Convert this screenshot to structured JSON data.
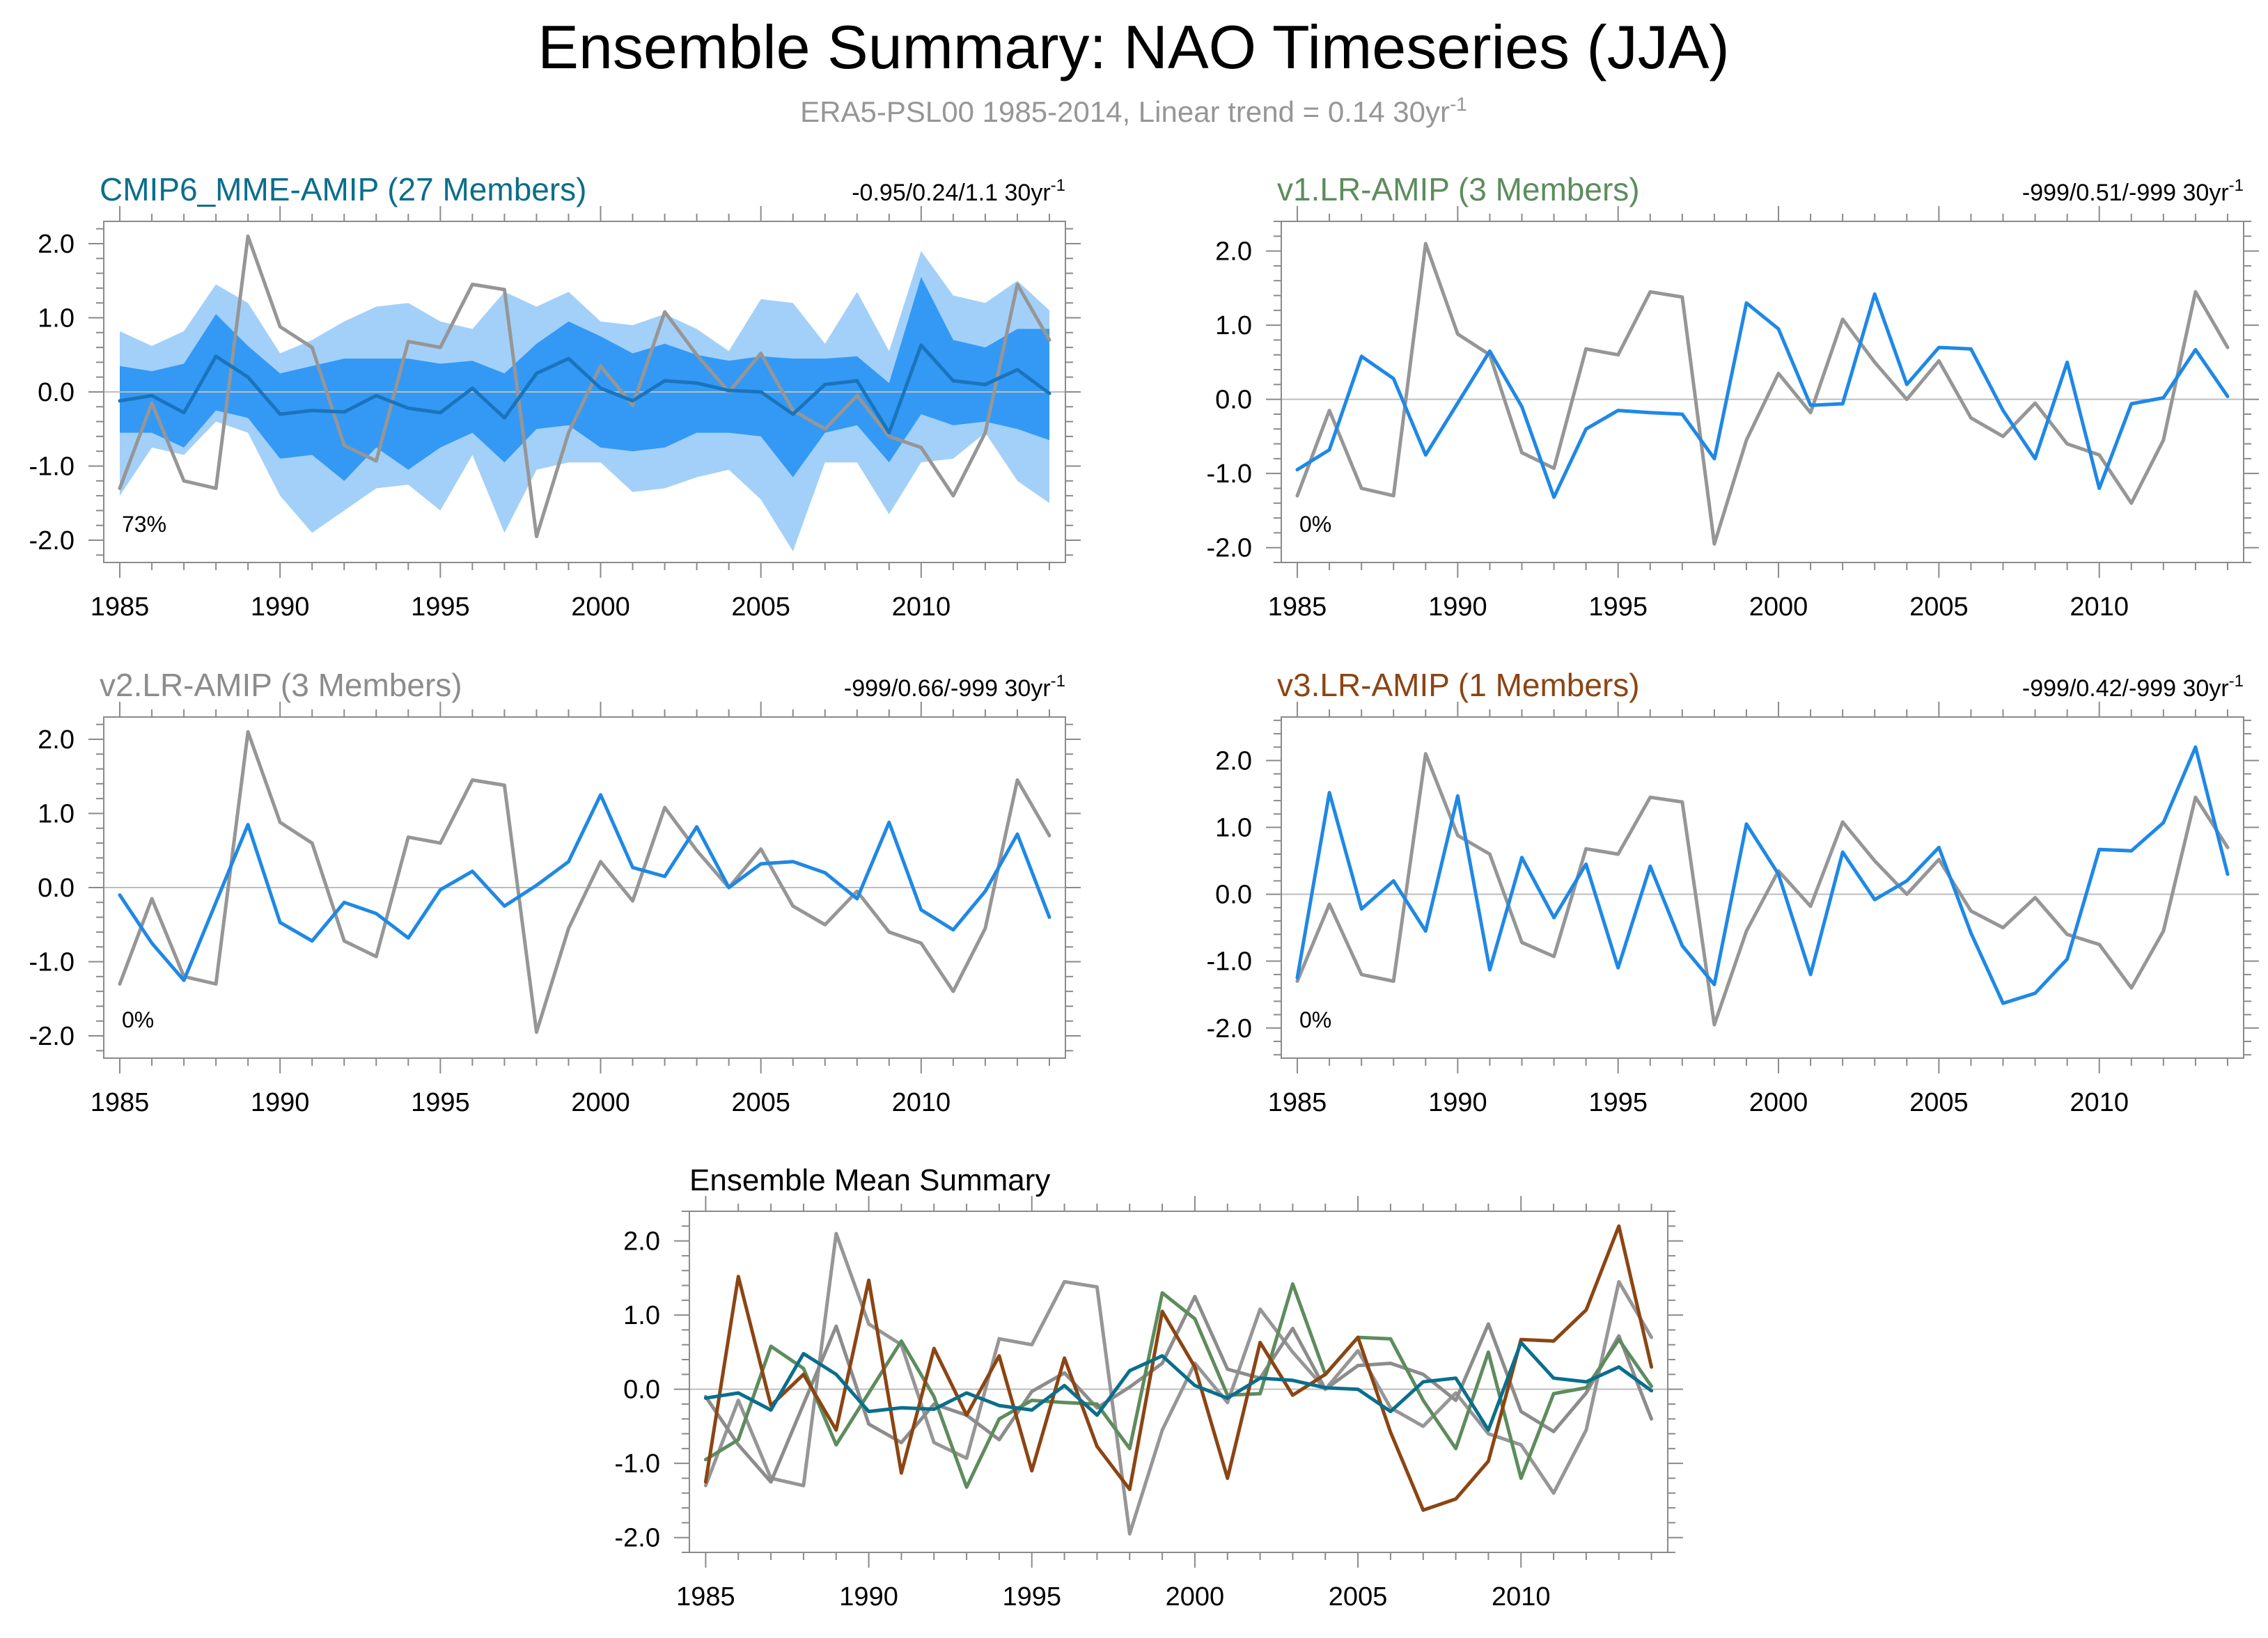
{
  "figure": {
    "title": "Ensemble Summary: NAO Timeseries (JJA)",
    "subtitle": "ERA5-PSL00 1985-2014, Linear trend = 0.14 30yr",
    "subtitle_sup": "-1"
  },
  "colors": {
    "obs": "#969696",
    "model_blue": "#1f88e5",
    "mme_title": "#0a6e8c",
    "mme_mean": "#1a74bd",
    "band_outer": "#a3d0f8",
    "band_inner": "#3399f5",
    "v1": "#5d8c5d",
    "v2": "#8c8c8c",
    "v3": "#8b4513",
    "zero_line": "#bdbdbd"
  },
  "chart_data": [
    {
      "id": "cmip6",
      "type": "line",
      "title": "CMIP6_MME-AMIP (27 Members)",
      "stats": "-0.95/0.24/1.1 30yr",
      "stats_sup": "-1",
      "percent_label": "73%",
      "x": [
        1985,
        1986,
        1987,
        1988,
        1989,
        1990,
        1991,
        1992,
        1993,
        1994,
        1995,
        1996,
        1997,
        1998,
        1999,
        2000,
        2001,
        2002,
        2003,
        2004,
        2005,
        2006,
        2007,
        2008,
        2009,
        2010,
        2011,
        2012,
        2013,
        2014
      ],
      "xlim": [
        1984.5,
        2014.5
      ],
      "ylim": [
        -2.3,
        2.3
      ],
      "xticks": [
        1985,
        1990,
        1995,
        2000,
        2005,
        2010
      ],
      "yticks": [
        2.0,
        1.0,
        0.0,
        -1.0,
        -2.0
      ],
      "ytick_labels": [
        "2.0",
        "1.0",
        "0.0",
        "-1.0",
        "-2.0"
      ],
      "xtick_labels": [
        "1985",
        "1990",
        "1995",
        "2000",
        "2005",
        "2010"
      ],
      "band_outer": {
        "upper": [
          0.82,
          0.62,
          0.82,
          1.45,
          1.2,
          0.52,
          0.7,
          0.95,
          1.15,
          1.2,
          0.95,
          0.85,
          1.35,
          1.15,
          1.35,
          0.95,
          0.9,
          1.05,
          0.85,
          0.55,
          1.25,
          1.2,
          0.65,
          1.35,
          0.55,
          1.9,
          1.3,
          1.2,
          1.5,
          1.1
        ],
        "lower": [
          -1.4,
          -0.75,
          -0.85,
          -0.4,
          -0.55,
          -1.4,
          -1.9,
          -1.6,
          -1.3,
          -1.25,
          -1.6,
          -0.85,
          -1.9,
          -1.05,
          -0.95,
          -0.95,
          -1.35,
          -1.3,
          -1.15,
          -1.05,
          -1.45,
          -2.15,
          -0.95,
          -0.95,
          -1.65,
          -0.95,
          -0.9,
          -0.55,
          -1.2,
          -1.5
        ]
      },
      "band_inner": {
        "upper": [
          0.35,
          0.28,
          0.38,
          1.05,
          0.62,
          0.25,
          0.35,
          0.45,
          0.45,
          0.45,
          0.38,
          0.42,
          0.25,
          0.65,
          0.95,
          0.75,
          0.52,
          0.65,
          0.5,
          0.42,
          0.48,
          0.45,
          0.45,
          0.48,
          0.12,
          1.55,
          0.7,
          0.6,
          0.85,
          0.85
        ],
        "lower": [
          -0.55,
          -0.55,
          -0.75,
          -0.25,
          -0.35,
          -0.9,
          -0.85,
          -1.2,
          -0.75,
          -1.05,
          -0.75,
          -0.55,
          -0.95,
          -0.5,
          -0.45,
          -0.75,
          -0.8,
          -0.75,
          -0.55,
          -0.55,
          -0.6,
          -1.15,
          -0.55,
          -0.45,
          -0.95,
          -0.3,
          -0.45,
          -0.4,
          -0.5,
          -0.65
        ]
      },
      "series": [
        {
          "role": "obs",
          "values": [
            -1.3,
            -0.15,
            -1.2,
            -1.3,
            2.1,
            0.88,
            0.6,
            -0.72,
            -0.93,
            0.68,
            0.6,
            1.45,
            1.38,
            -1.95,
            -0.55,
            0.35,
            -0.18,
            1.08,
            0.5,
            0.0,
            0.52,
            -0.25,
            -0.5,
            -0.05,
            -0.6,
            -0.75,
            -1.4,
            -0.55,
            1.45,
            0.7
          ]
        },
        {
          "role": "model",
          "values": [
            -0.12,
            -0.05,
            -0.28,
            0.48,
            0.2,
            -0.3,
            -0.25,
            -0.27,
            -0.05,
            -0.22,
            -0.28,
            0.05,
            -0.35,
            0.25,
            0.45,
            0.05,
            -0.12,
            0.15,
            0.12,
            0.02,
            0.0,
            -0.3,
            0.1,
            0.15,
            -0.55,
            0.63,
            0.15,
            0.1,
            0.3,
            -0.02
          ]
        }
      ]
    },
    {
      "id": "v1",
      "type": "line",
      "title": "v1.LR-AMIP (3 Members)",
      "stats": "-999/0.51/-999 30yr",
      "stats_sup": "-1",
      "percent_label": "0%",
      "x": [
        1985,
        1986,
        1987,
        1988,
        1989,
        1990,
        1991,
        1992,
        1993,
        1994,
        1995,
        1996,
        1997,
        1998,
        1999,
        2000,
        2001,
        2002,
        2003,
        2004,
        2005,
        2006,
        2007,
        2008,
        2009,
        2010,
        2011,
        2012,
        2013,
        2014
      ],
      "xlim": [
        1984.5,
        2014.5
      ],
      "ylim": [
        -2.2,
        2.4
      ],
      "xticks": [
        1985,
        1990,
        1995,
        2000,
        2005,
        2010
      ],
      "yticks": [
        2.0,
        1.0,
        0.0,
        -1.0,
        -2.0
      ],
      "ytick_labels": [
        "2.0",
        "1.0",
        "0.0",
        "-1.0",
        "-2.0"
      ],
      "xtick_labels": [
        "1985",
        "1990",
        "1995",
        "2000",
        "2005",
        "2010"
      ],
      "series": [
        {
          "role": "obs",
          "values": [
            -1.3,
            -0.15,
            -1.2,
            -1.3,
            2.1,
            0.88,
            0.6,
            -0.72,
            -0.93,
            0.68,
            0.6,
            1.45,
            1.38,
            -1.95,
            -0.55,
            0.35,
            -0.18,
            1.08,
            0.5,
            0.0,
            0.52,
            -0.25,
            -0.5,
            -0.05,
            -0.6,
            -0.75,
            -1.4,
            -0.55,
            1.45,
            0.7
          ]
        },
        {
          "role": "model",
          "values": [
            -0.95,
            -0.68,
            0.58,
            0.28,
            -0.75,
            -0.05,
            0.65,
            -0.1,
            -1.32,
            -0.4,
            -0.15,
            -0.18,
            -0.2,
            -0.8,
            1.3,
            0.95,
            -0.08,
            -0.06,
            1.42,
            0.2,
            0.7,
            0.68,
            -0.15,
            -0.8,
            0.5,
            -1.2,
            -0.06,
            0.02,
            0.67,
            0.04
          ]
        }
      ]
    },
    {
      "id": "v2",
      "type": "line",
      "title": "v2.LR-AMIP (3 Members)",
      "stats": "-999/0.66/-999 30yr",
      "stats_sup": "-1",
      "percent_label": "0%",
      "x": [
        1985,
        1986,
        1987,
        1988,
        1989,
        1990,
        1991,
        1992,
        1993,
        1994,
        1995,
        1996,
        1997,
        1998,
        1999,
        2000,
        2001,
        2002,
        2003,
        2004,
        2005,
        2006,
        2007,
        2008,
        2009,
        2010,
        2011,
        2012,
        2013,
        2014
      ],
      "xlim": [
        1984.5,
        2014.5
      ],
      "ylim": [
        -2.3,
        2.3
      ],
      "xticks": [
        1985,
        1990,
        1995,
        2000,
        2005,
        2010
      ],
      "yticks": [
        2.0,
        1.0,
        0.0,
        -1.0,
        -2.0
      ],
      "ytick_labels": [
        "2.0",
        "1.0",
        "0.0",
        "-1.0",
        "-2.0"
      ],
      "xtick_labels": [
        "1985",
        "1990",
        "1995",
        "2000",
        "2005",
        "2010"
      ],
      "series": [
        {
          "role": "obs",
          "values": [
            -1.3,
            -0.15,
            -1.2,
            -1.3,
            2.1,
            0.88,
            0.6,
            -0.72,
            -0.93,
            0.68,
            0.6,
            1.45,
            1.38,
            -1.95,
            -0.55,
            0.35,
            -0.18,
            1.08,
            0.5,
            0.0,
            0.52,
            -0.25,
            -0.5,
            -0.05,
            -0.6,
            -0.75,
            -1.4,
            -0.55,
            1.45,
            0.7
          ]
        },
        {
          "role": "model",
          "values": [
            -0.1,
            -0.75,
            -1.25,
            -0.2,
            0.85,
            -0.47,
            -0.72,
            -0.2,
            -0.35,
            -0.68,
            -0.03,
            0.22,
            -0.25,
            0.03,
            0.35,
            1.25,
            0.27,
            0.15,
            0.82,
            0.0,
            0.32,
            0.35,
            0.2,
            -0.15,
            0.88,
            -0.3,
            -0.57,
            -0.05,
            0.72,
            -0.4
          ]
        }
      ]
    },
    {
      "id": "v3",
      "type": "line",
      "title": "v3.LR-AMIP (1 Members)",
      "stats": "-999/0.42/-999 30yr",
      "stats_sup": "-1",
      "percent_label": "0%",
      "x": [
        1985,
        1986,
        1987,
        1988,
        1989,
        1990,
        1991,
        1992,
        1993,
        1994,
        1995,
        1996,
        1997,
        1998,
        1999,
        2000,
        2001,
        2002,
        2003,
        2004,
        2005,
        2006,
        2007,
        2008,
        2009,
        2010,
        2011,
        2012,
        2013,
        2014
      ],
      "xlim": [
        1984.5,
        2014.5
      ],
      "ylim": [
        -2.45,
        2.65
      ],
      "xticks": [
        1985,
        1990,
        1995,
        2000,
        2005,
        2010
      ],
      "yticks": [
        2.0,
        1.0,
        0.0,
        -1.0,
        -2.0
      ],
      "ytick_labels": [
        "2.0",
        "1.0",
        "0.0",
        "-1.0",
        "-2.0"
      ],
      "xtick_labels": [
        "1985",
        "1990",
        "1995",
        "2000",
        "2005",
        "2010"
      ],
      "series": [
        {
          "role": "obs",
          "values": [
            -1.3,
            -0.15,
            -1.2,
            -1.3,
            2.1,
            0.88,
            0.6,
            -0.72,
            -0.93,
            0.68,
            0.6,
            1.45,
            1.38,
            -1.95,
            -0.55,
            0.35,
            -0.18,
            1.08,
            0.5,
            0.0,
            0.52,
            -0.25,
            -0.5,
            -0.05,
            -0.6,
            -0.75,
            -1.4,
            -0.55,
            1.45,
            0.7
          ]
        },
        {
          "role": "model",
          "values": [
            -1.25,
            1.52,
            -0.22,
            0.2,
            -0.55,
            1.47,
            -1.13,
            0.55,
            -0.35,
            0.45,
            -1.1,
            0.42,
            -0.77,
            -1.35,
            1.05,
            0.3,
            -1.2,
            0.63,
            -0.08,
            0.2,
            0.7,
            -0.58,
            -1.63,
            -1.48,
            -0.97,
            0.67,
            0.65,
            1.07,
            2.2,
            0.3
          ]
        }
      ]
    },
    {
      "id": "mean_summary",
      "type": "line",
      "title": "Ensemble Mean Summary",
      "x": [
        1985,
        1986,
        1987,
        1988,
        1989,
        1990,
        1991,
        1992,
        1993,
        1994,
        1995,
        1996,
        1997,
        1998,
        1999,
        2000,
        2001,
        2002,
        2003,
        2004,
        2005,
        2006,
        2007,
        2008,
        2009,
        2010,
        2011,
        2012,
        2013,
        2014
      ],
      "xlim": [
        1984.5,
        2014.5
      ],
      "ylim": [
        -2.2,
        2.4
      ],
      "xticks": [
        1985,
        1990,
        1995,
        2000,
        2005,
        2010
      ],
      "yticks": [
        2.0,
        1.0,
        0.0,
        -1.0,
        -2.0
      ],
      "ytick_labels": [
        "2.0",
        "1.0",
        "0.0",
        "-1.0",
        "-2.0"
      ],
      "xtick_labels": [
        "1985",
        "1990",
        "1995",
        "2000",
        "2005",
        "2010"
      ],
      "series": [
        {
          "role": "obs",
          "values": [
            -1.3,
            -0.15,
            -1.2,
            -1.3,
            2.1,
            0.88,
            0.6,
            -0.72,
            -0.93,
            0.68,
            0.6,
            1.45,
            1.38,
            -1.95,
            -0.55,
            0.35,
            -0.18,
            1.08,
            0.5,
            0.0,
            0.52,
            -0.25,
            -0.5,
            -0.05,
            -0.6,
            -0.75,
            -1.4,
            -0.55,
            1.45,
            0.7
          ]
        },
        {
          "role": "v2",
          "values": [
            -0.1,
            -0.75,
            -1.25,
            -0.2,
            0.85,
            -0.47,
            -0.72,
            -0.2,
            -0.35,
            -0.68,
            -0.03,
            0.22,
            -0.25,
            0.03,
            0.35,
            1.25,
            0.27,
            0.15,
            0.82,
            0.0,
            0.32,
            0.35,
            0.2,
            -0.15,
            0.88,
            -0.3,
            -0.57,
            -0.05,
            0.72,
            -0.4
          ]
        },
        {
          "role": "v1",
          "values": [
            -0.95,
            -0.68,
            0.58,
            0.28,
            -0.75,
            -0.05,
            0.65,
            -0.1,
            -1.32,
            -0.4,
            -0.15,
            -0.18,
            -0.2,
            -0.8,
            1.3,
            0.95,
            -0.08,
            -0.06,
            1.42,
            0.2,
            0.7,
            0.68,
            -0.15,
            -0.8,
            0.5,
            -1.2,
            -0.06,
            0.02,
            0.67,
            0.04
          ]
        },
        {
          "role": "v3",
          "values": [
            -1.25,
            1.52,
            -0.22,
            0.2,
            -0.55,
            1.47,
            -1.13,
            0.55,
            -0.35,
            0.45,
            -1.1,
            0.42,
            -0.77,
            -1.35,
            1.05,
            0.3,
            -1.2,
            0.63,
            -0.08,
            0.2,
            0.7,
            -0.58,
            -1.63,
            -1.48,
            -0.97,
            0.67,
            0.65,
            1.07,
            2.2,
            0.3
          ]
        },
        {
          "role": "mme",
          "values": [
            -0.12,
            -0.05,
            -0.28,
            0.48,
            0.2,
            -0.3,
            -0.25,
            -0.27,
            -0.05,
            -0.22,
            -0.28,
            0.05,
            -0.35,
            0.25,
            0.45,
            0.05,
            -0.12,
            0.15,
            0.12,
            0.02,
            0.0,
            -0.3,
            0.1,
            0.15,
            -0.55,
            0.63,
            0.15,
            0.1,
            0.3,
            -0.02
          ]
        }
      ]
    }
  ]
}
